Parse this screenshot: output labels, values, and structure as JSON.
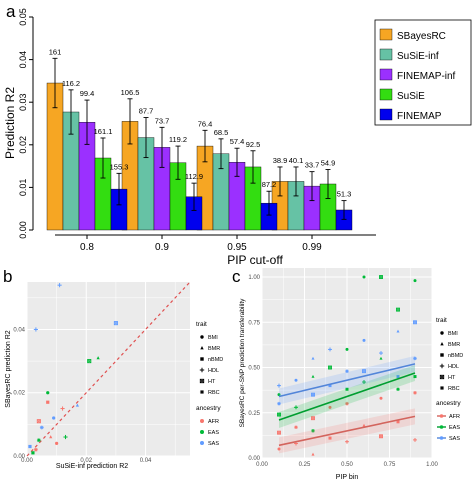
{
  "figure": {
    "panel_labels": [
      "a",
      "b",
      "c"
    ]
  },
  "chart_data": [
    {
      "panel": "a",
      "type": "bar",
      "xlabel": "PIP cut-off",
      "ylabel": "Prediction R2",
      "ylim": [
        0,
        0.05
      ],
      "yticks": [
        "0.00",
        "0.01",
        "0.02",
        "0.03",
        "0.04",
        "0.05"
      ],
      "categories": [
        "0.8",
        "0.9",
        "0.95",
        "0.99"
      ],
      "legend_position": "top-right",
      "series": [
        {
          "name": "SBayesRC",
          "color": "#F6A623",
          "values": [
            0.0345,
            0.0255,
            0.0197,
            0.0114
          ],
          "err": [
            0.0058,
            0.0053,
            0.0037,
            0.0034
          ],
          "labels": [
            "161",
            "106.5",
            "76.4",
            "38.9"
          ]
        },
        {
          "name": "SuSiE-inf",
          "color": "#66C2A5",
          "values": [
            0.0277,
            0.0217,
            0.0179,
            0.0114
          ],
          "err": [
            0.0052,
            0.0047,
            0.0035,
            0.0034
          ],
          "labels": [
            "116.2",
            "87.7",
            "68.5",
            "40.1"
          ]
        },
        {
          "name": "FINEMAP-inf",
          "color": "#9B30FF",
          "values": [
            0.0253,
            0.0194,
            0.0159,
            0.0103
          ],
          "err": [
            0.0052,
            0.0047,
            0.0033,
            0.0034
          ],
          "labels": [
            "99.4",
            "73.7",
            "57.4",
            "33.7"
          ]
        },
        {
          "name": "SuSiE",
          "color": "#33DD11",
          "values": [
            0.0169,
            0.0158,
            0.0148,
            0.0108
          ],
          "err": [
            0.0047,
            0.0039,
            0.0038,
            0.0034
          ],
          "labels": [
            "161.1",
            "119.2",
            "92.5",
            "54.9"
          ]
        },
        {
          "name": "FINEMAP",
          "color": "#0000EE",
          "values": [
            0.0096,
            0.0078,
            0.0063,
            0.0047
          ],
          "err": [
            0.0037,
            0.0032,
            0.0028,
            0.0022
          ],
          "labels": [
            "155.3",
            "112.9",
            "87.2",
            "51.3"
          ]
        }
      ]
    },
    {
      "panel": "b",
      "type": "scatter",
      "xlabel": "SuSiE-inf prediction R2",
      "ylabel": "SBayesRC prediction R2",
      "xlim": [
        0,
        0.055
      ],
      "ylim": [
        0,
        0.055
      ],
      "xticks": [
        "0.00",
        "0.02",
        "0.04"
      ],
      "yticks": [
        "0.00",
        "0.02",
        "0.04"
      ],
      "identity_line": true,
      "points": [
        {
          "x": 0.01,
          "y": 0.004,
          "trait": "BMI",
          "ancestry": "AFR"
        },
        {
          "x": 0.008,
          "y": 0.006,
          "trait": "BMR",
          "ancestry": "AFR"
        },
        {
          "x": 0.004,
          "y": 0.011,
          "trait": "HT",
          "ancestry": "AFR"
        },
        {
          "x": 0.012,
          "y": 0.015,
          "trait": "HDL",
          "ancestry": "AFR"
        },
        {
          "x": 0.003,
          "y": 0.002,
          "trait": "RBC",
          "ancestry": "AFR"
        },
        {
          "x": 0.007,
          "y": 0.017,
          "trait": "nBMD",
          "ancestry": "AFR"
        },
        {
          "x": 0.007,
          "y": 0.02,
          "trait": "BMI",
          "ancestry": "EAS"
        },
        {
          "x": 0.021,
          "y": 0.03,
          "trait": "HT",
          "ancestry": "EAS"
        },
        {
          "x": 0.024,
          "y": 0.031,
          "trait": "BMR",
          "ancestry": "EAS"
        },
        {
          "x": 0.013,
          "y": 0.006,
          "trait": "HDL",
          "ancestry": "EAS"
        },
        {
          "x": 0.004,
          "y": 0.005,
          "trait": "RBC",
          "ancestry": "EAS"
        },
        {
          "x": 0.002,
          "y": 0.001,
          "trait": "nBMD",
          "ancestry": "EAS"
        },
        {
          "x": 0.011,
          "y": 0.054,
          "trait": "HDL",
          "ancestry": "SAS"
        },
        {
          "x": 0.003,
          "y": 0.04,
          "trait": "HDL",
          "ancestry": "SAS"
        },
        {
          "x": 0.03,
          "y": 0.042,
          "trait": "HT",
          "ancestry": "SAS"
        },
        {
          "x": 0.009,
          "y": 0.012,
          "trait": "BMI",
          "ancestry": "SAS"
        },
        {
          "x": 0.005,
          "y": 0.009,
          "trait": "RBC",
          "ancestry": "SAS"
        },
        {
          "x": 0.017,
          "y": 0.016,
          "trait": "BMR",
          "ancestry": "SAS"
        },
        {
          "x": 0.001,
          "y": 0.003,
          "trait": "nBMD",
          "ancestry": "SAS"
        }
      ]
    },
    {
      "panel": "c",
      "type": "scatter",
      "xlabel": "PIP bin",
      "ylabel": "SBayesRC per-SNP prediction transferability",
      "xlim": [
        0,
        1
      ],
      "ylim": [
        0,
        1.05
      ],
      "xticks": [
        "0.00",
        "0.25",
        "0.50",
        "0.75",
        "1.00"
      ],
      "yticks": [
        "0.00",
        "0.25",
        "0.50",
        "0.75",
        "1.00"
      ],
      "trend_lines": [
        {
          "ancestry": "AFR",
          "x": [
            0.1,
            0.9
          ],
          "y": [
            0.07,
            0.23
          ]
        },
        {
          "ancestry": "EAS",
          "x": [
            0.1,
            0.9
          ],
          "y": [
            0.21,
            0.47
          ]
        },
        {
          "ancestry": "SAS",
          "x": [
            0.1,
            0.9
          ],
          "y": [
            0.34,
            0.52
          ]
        }
      ],
      "points": [
        {
          "x": 0.1,
          "y": 0.05,
          "trait": "BMI",
          "ancestry": "AFR"
        },
        {
          "x": 0.1,
          "y": 0.14,
          "trait": "HT",
          "ancestry": "AFR"
        },
        {
          "x": 0.2,
          "y": 0.08,
          "trait": "HDL",
          "ancestry": "AFR"
        },
        {
          "x": 0.2,
          "y": 0.17,
          "trait": "RBC",
          "ancestry": "AFR"
        },
        {
          "x": 0.3,
          "y": 0.02,
          "trait": "BMR",
          "ancestry": "AFR"
        },
        {
          "x": 0.3,
          "y": 0.22,
          "trait": "HT",
          "ancestry": "AFR"
        },
        {
          "x": 0.4,
          "y": 0.11,
          "trait": "nBMD",
          "ancestry": "AFR"
        },
        {
          "x": 0.4,
          "y": 0.28,
          "trait": "BMI",
          "ancestry": "AFR"
        },
        {
          "x": 0.5,
          "y": 0.09,
          "trait": "HDL",
          "ancestry": "AFR"
        },
        {
          "x": 0.5,
          "y": 0.3,
          "trait": "RBC",
          "ancestry": "AFR"
        },
        {
          "x": 0.6,
          "y": 0.18,
          "trait": "BMR",
          "ancestry": "AFR"
        },
        {
          "x": 0.7,
          "y": 0.12,
          "trait": "HT",
          "ancestry": "AFR"
        },
        {
          "x": 0.7,
          "y": 0.33,
          "trait": "BMI",
          "ancestry": "AFR"
        },
        {
          "x": 0.8,
          "y": 0.2,
          "trait": "nBMD",
          "ancestry": "AFR"
        },
        {
          "x": 0.9,
          "y": 0.1,
          "trait": "HDL",
          "ancestry": "AFR"
        },
        {
          "x": 0.9,
          "y": 0.36,
          "trait": "RBC",
          "ancestry": "AFR"
        },
        {
          "x": 0.1,
          "y": 0.35,
          "trait": "BMI",
          "ancestry": "EAS"
        },
        {
          "x": 0.1,
          "y": 0.24,
          "trait": "HT",
          "ancestry": "EAS"
        },
        {
          "x": 0.2,
          "y": 0.28,
          "trait": "HDL",
          "ancestry": "EAS"
        },
        {
          "x": 0.3,
          "y": 0.45,
          "trait": "BMR",
          "ancestry": "EAS"
        },
        {
          "x": 0.3,
          "y": 0.15,
          "trait": "RBC",
          "ancestry": "EAS"
        },
        {
          "x": 0.4,
          "y": 0.5,
          "trait": "HT",
          "ancestry": "EAS"
        },
        {
          "x": 0.5,
          "y": 0.38,
          "trait": "nBMD",
          "ancestry": "EAS"
        },
        {
          "x": 0.5,
          "y": 0.6,
          "trait": "BMI",
          "ancestry": "EAS"
        },
        {
          "x": 0.6,
          "y": 1.0,
          "trait": "BMI",
          "ancestry": "EAS"
        },
        {
          "x": 0.6,
          "y": 0.42,
          "trait": "HDL",
          "ancestry": "EAS"
        },
        {
          "x": 0.7,
          "y": 1.0,
          "trait": "HT",
          "ancestry": "EAS"
        },
        {
          "x": 0.7,
          "y": 0.55,
          "trait": "BMR",
          "ancestry": "EAS"
        },
        {
          "x": 0.8,
          "y": 0.38,
          "trait": "RBC",
          "ancestry": "EAS"
        },
        {
          "x": 0.8,
          "y": 0.82,
          "trait": "HT",
          "ancestry": "EAS"
        },
        {
          "x": 0.9,
          "y": 0.45,
          "trait": "nBMD",
          "ancestry": "EAS"
        },
        {
          "x": 0.9,
          "y": 0.98,
          "trait": "BMI",
          "ancestry": "EAS"
        },
        {
          "x": 0.1,
          "y": 0.4,
          "trait": "HDL",
          "ancestry": "SAS"
        },
        {
          "x": 0.1,
          "y": 0.3,
          "trait": "RBC",
          "ancestry": "SAS"
        },
        {
          "x": 0.2,
          "y": 0.43,
          "trait": "BMI",
          "ancestry": "SAS"
        },
        {
          "x": 0.3,
          "y": 0.35,
          "trait": "HT",
          "ancestry": "SAS"
        },
        {
          "x": 0.3,
          "y": 0.55,
          "trait": "BMR",
          "ancestry": "SAS"
        },
        {
          "x": 0.4,
          "y": 0.6,
          "trait": "HDL",
          "ancestry": "SAS"
        },
        {
          "x": 0.4,
          "y": 0.4,
          "trait": "nBMD",
          "ancestry": "SAS"
        },
        {
          "x": 0.5,
          "y": 0.48,
          "trait": "RBC",
          "ancestry": "SAS"
        },
        {
          "x": 0.6,
          "y": 0.65,
          "trait": "BMI",
          "ancestry": "SAS"
        },
        {
          "x": 0.6,
          "y": 0.48,
          "trait": "HT",
          "ancestry": "SAS"
        },
        {
          "x": 0.7,
          "y": 0.58,
          "trait": "HDL",
          "ancestry": "SAS"
        },
        {
          "x": 0.8,
          "y": 0.7,
          "trait": "BMR",
          "ancestry": "SAS"
        },
        {
          "x": 0.8,
          "y": 0.45,
          "trait": "nBMD",
          "ancestry": "SAS"
        },
        {
          "x": 0.9,
          "y": 0.55,
          "trait": "RBC",
          "ancestry": "SAS"
        },
        {
          "x": 0.9,
          "y": 0.75,
          "trait": "HT",
          "ancestry": "SAS"
        }
      ]
    }
  ],
  "legend_trait": {
    "title": "trait",
    "items": [
      {
        "name": "BMI",
        "shape": "dot"
      },
      {
        "name": "BMR",
        "shape": "triangle"
      },
      {
        "name": "nBMD",
        "shape": "square"
      },
      {
        "name": "HDL",
        "shape": "plus"
      },
      {
        "name": "HT",
        "shape": "boxx"
      },
      {
        "name": "RBC",
        "shape": "star"
      }
    ]
  },
  "legend_ancestry": {
    "title": "ancestry",
    "items": [
      {
        "name": "AFR",
        "color": "#F8766D"
      },
      {
        "name": "EAS",
        "color": "#00BA38"
      },
      {
        "name": "SAS",
        "color": "#619CFF"
      }
    ]
  },
  "colors": {
    "panel_bg": "#EBEBEB",
    "grid": "#FFFFFF",
    "identity_line": "#E05050"
  }
}
